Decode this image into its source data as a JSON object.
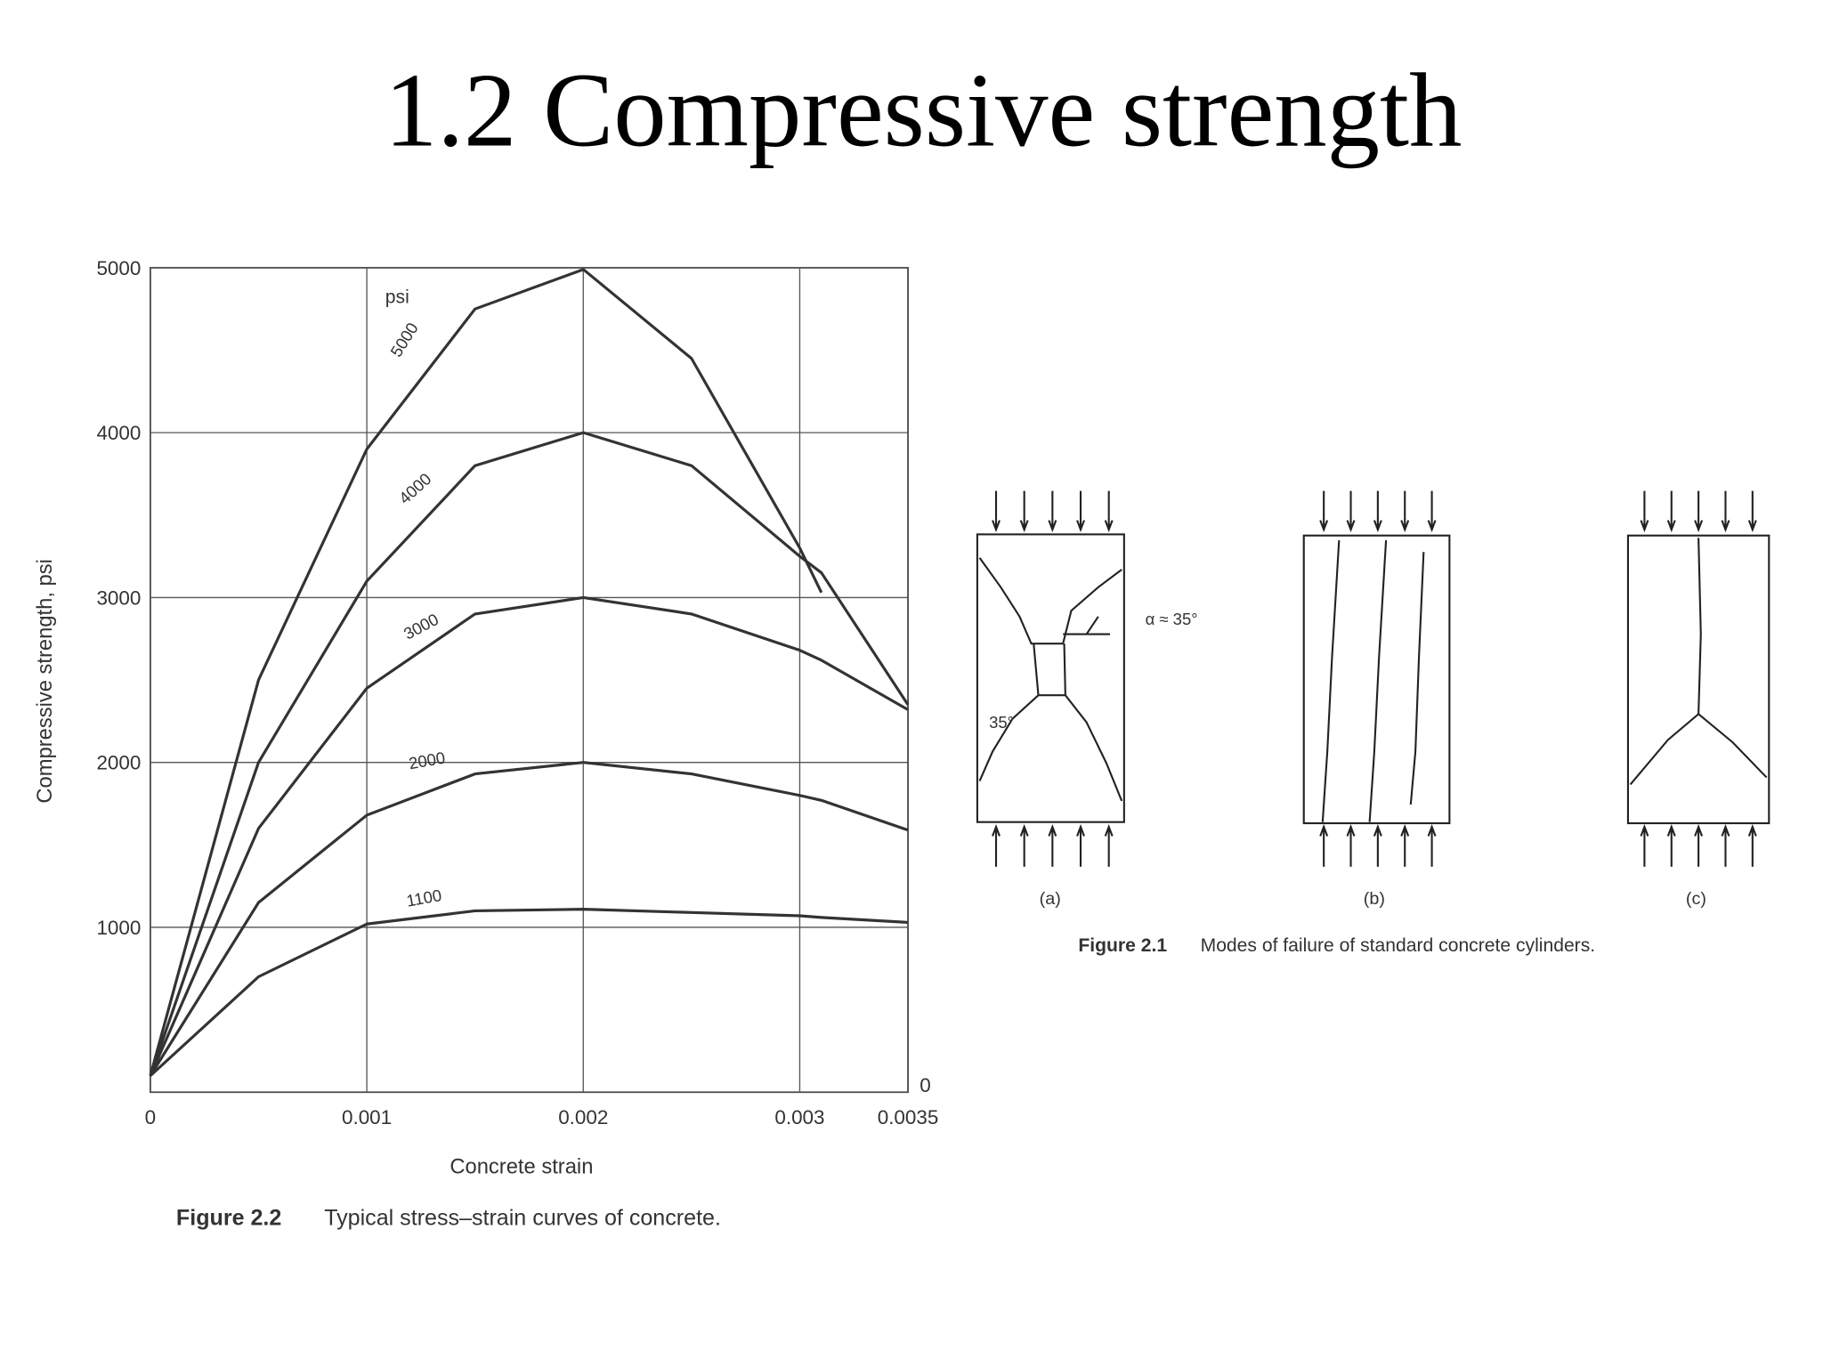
{
  "title": "1.2  Compressive strength",
  "chart_data": {
    "type": "line",
    "x": [
      0,
      0.0005,
      0.001,
      0.0015,
      0.002,
      0.0025,
      0.003,
      0.0031,
      0.0035
    ],
    "series": [
      {
        "name": "5000",
        "color": "#333333",
        "values": [
          100,
          2500,
          3900,
          4750,
          4990,
          4450,
          3300,
          3030,
          null
        ]
      },
      {
        "name": "4000",
        "color": "#333333",
        "values": [
          100,
          2000,
          3100,
          3800,
          4000,
          3800,
          3250,
          3150,
          2350
        ]
      },
      {
        "name": "3000",
        "color": "#333333",
        "values": [
          100,
          1600,
          2450,
          2900,
          3000,
          2900,
          2680,
          2620,
          2320
        ]
      },
      {
        "name": "2000",
        "color": "#333333",
        "values": [
          100,
          1150,
          1680,
          1930,
          2000,
          1930,
          1800,
          1770,
          1590
        ]
      },
      {
        "name": "1100",
        "color": "#333333",
        "values": [
          100,
          700,
          1020,
          1100,
          1110,
          1090,
          1070,
          1060,
          1030
        ]
      }
    ],
    "annotation": "psi",
    "xlabel": "Concrete strain",
    "ylabel": "Compressive strength, psi",
    "xlim": [
      0,
      0.0035
    ],
    "ylim": [
      0,
      5000
    ],
    "xticks": [
      0,
      0.001,
      0.002,
      0.003,
      0.0035
    ],
    "yticks": [
      0,
      1000,
      2000,
      3000,
      4000,
      5000
    ],
    "grid": true,
    "caption_label": "Figure 2.2",
    "caption": "Typical stress–strain curves of concrete."
  },
  "figure": {
    "panels": [
      "(a)",
      "(b)",
      "(c)"
    ],
    "angle_label": "α ≈ 35°",
    "angle_label_2": "35°",
    "caption_label": "Figure 2.1",
    "caption": "Modes of failure of standard concrete cylinders."
  }
}
